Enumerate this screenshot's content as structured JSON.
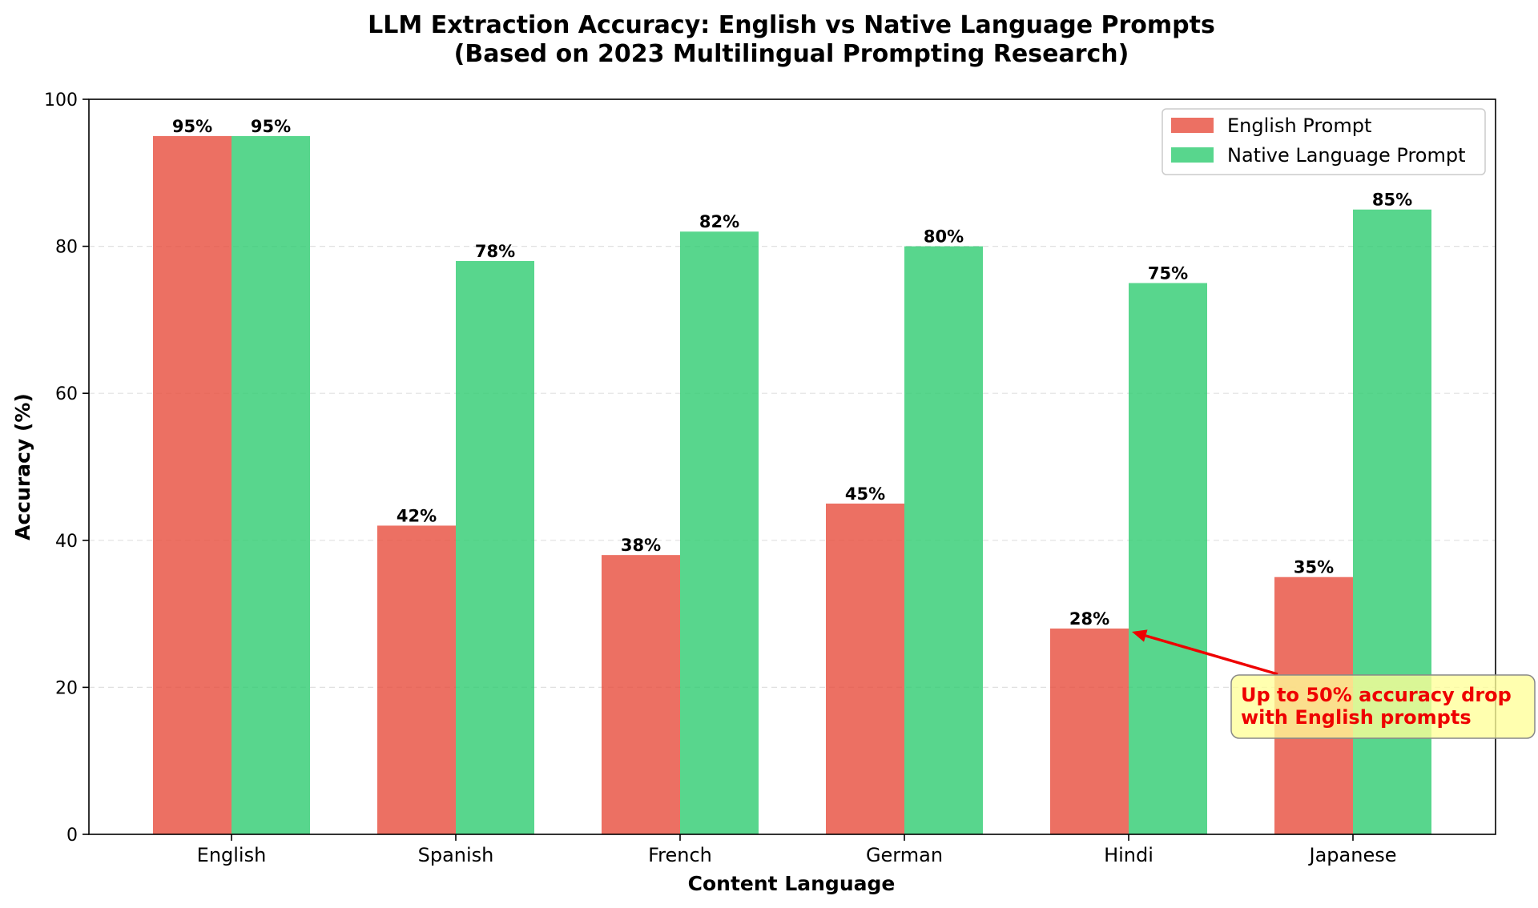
{
  "chart_data": {
    "type": "bar",
    "title": "LLM Extraction Accuracy: English vs Native Language Prompts",
    "subtitle": "(Based on 2023 Multilingual Prompting Research)",
    "xlabel": "Content Language",
    "ylabel": "Accuracy (%)",
    "ylim": [
      0,
      100
    ],
    "yticks": [
      "0",
      "20",
      "40",
      "60",
      "80",
      "100"
    ],
    "categories": [
      "English",
      "Spanish",
      "French",
      "German",
      "Hindi",
      "Japanese"
    ],
    "series": [
      {
        "name": "English Prompt",
        "color": "#e74c3c",
        "values": [
          95,
          42,
          38,
          45,
          28,
          35
        ],
        "labels": [
          "95%",
          "42%",
          "38%",
          "45%",
          "28%",
          "35%"
        ]
      },
      {
        "name": "Native Language Prompt",
        "color": "#2ecc71",
        "values": [
          95,
          78,
          82,
          80,
          75,
          85
        ],
        "labels": [
          "95%",
          "78%",
          "82%",
          "80%",
          "75%",
          "85%"
        ]
      }
    ],
    "grid": "y-dashed",
    "legend_position": "top-right",
    "annotation": {
      "lines": [
        "Up to 50% accuracy drop",
        "with English prompts"
      ],
      "color": "#ee0000",
      "box_color": "#ffffa8",
      "target": {
        "category": "Hindi",
        "value": 28
      }
    }
  }
}
